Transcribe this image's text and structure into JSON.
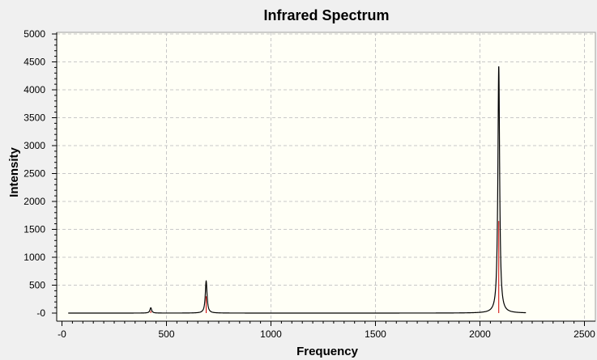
{
  "chart_data": {
    "type": "line",
    "title": "Infrared Spectrum",
    "xlabel": "Frequency",
    "ylabel": "Intensity",
    "xlim": [
      -25,
      2500
    ],
    "ylim": [
      0,
      5000
    ],
    "x_ticks": [
      {
        "value": 0,
        "label": "-0"
      },
      {
        "value": 500,
        "label": "500"
      },
      {
        "value": 1000,
        "label": "1000"
      },
      {
        "value": 1500,
        "label": "1500"
      },
      {
        "value": 2000,
        "label": "2000"
      },
      {
        "value": 2500,
        "label": "2500"
      }
    ],
    "y_ticks": [
      {
        "value": 0,
        "label": "-0"
      },
      {
        "value": 500,
        "label": "500"
      },
      {
        "value": 1000,
        "label": "1000"
      },
      {
        "value": 1500,
        "label": "1500"
      },
      {
        "value": 2000,
        "label": "2000"
      },
      {
        "value": 2500,
        "label": "2500"
      },
      {
        "value": 3000,
        "label": "3000"
      },
      {
        "value": 3500,
        "label": "3500"
      },
      {
        "value": 4000,
        "label": "4000"
      },
      {
        "value": 4500,
        "label": "4500"
      },
      {
        "value": 5000,
        "label": "5000"
      }
    ],
    "grid": true,
    "background_color": "#fffff6",
    "spectrum_color": "#000000",
    "stick_color": "#cc0000",
    "spectrum_range": [
      30,
      2220
    ],
    "peaks": [
      {
        "x": 425,
        "intensity": 95,
        "stick": 40
      },
      {
        "x": 690,
        "intensity": 575,
        "stick": 300
      },
      {
        "x": 2090,
        "intensity": 4420,
        "stick": 1650
      }
    ]
  }
}
